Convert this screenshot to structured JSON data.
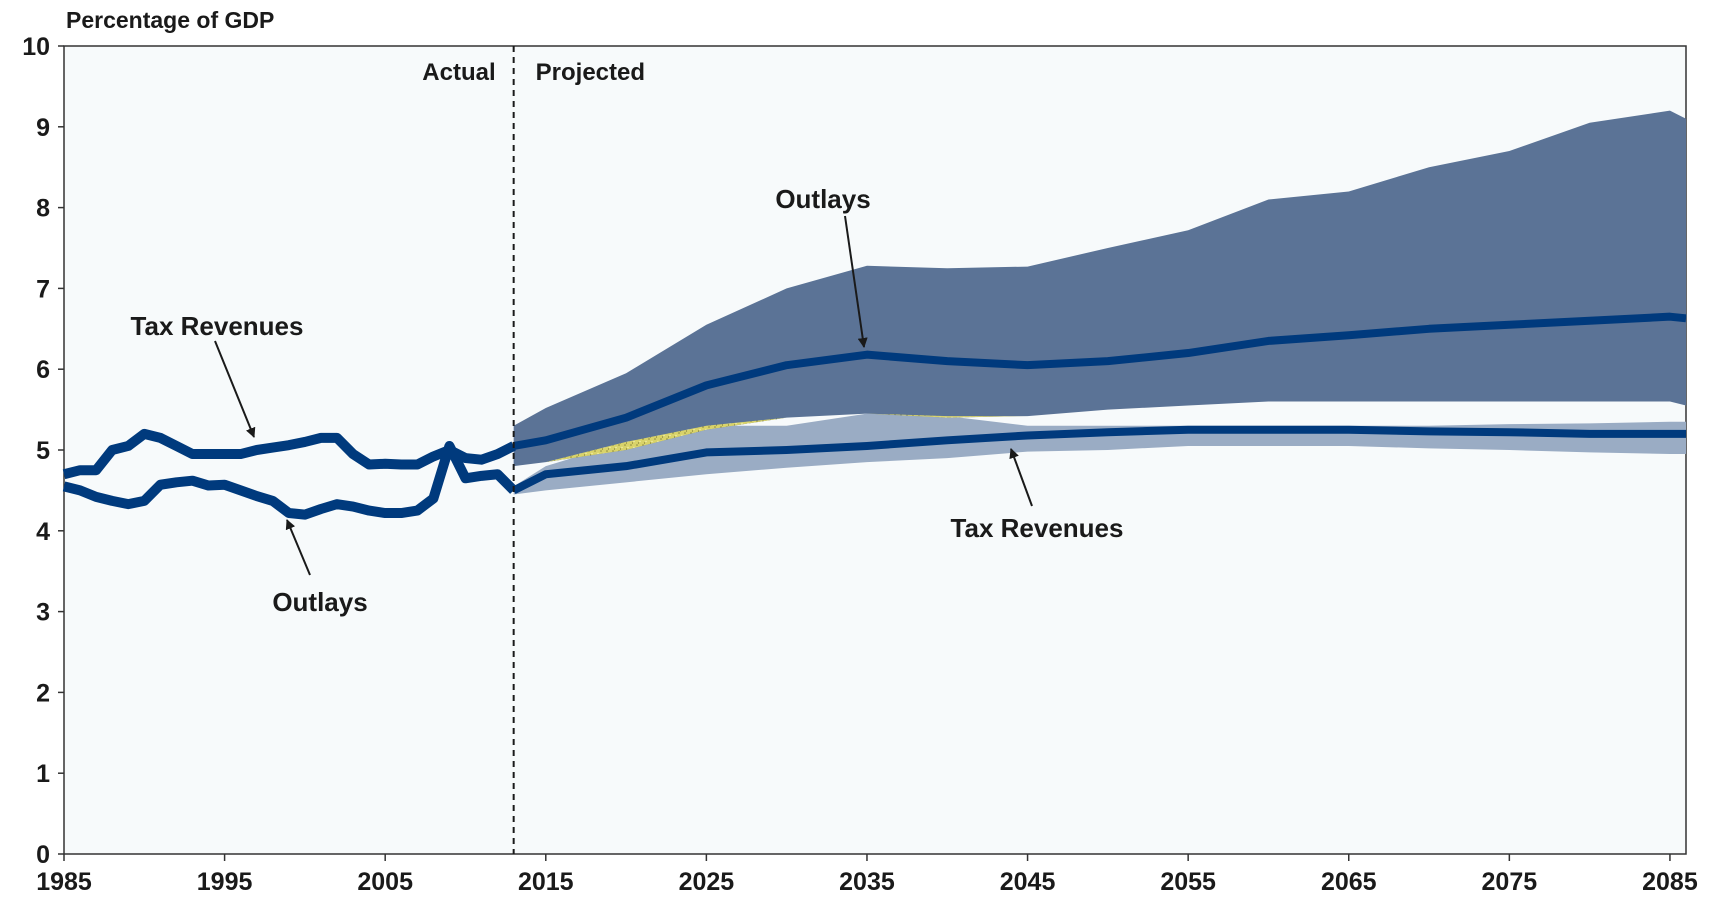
{
  "chart_data": {
    "type": "line",
    "y_label": "Percentage of GDP",
    "xlim": [
      1985,
      2086
    ],
    "ylim": [
      0,
      10
    ],
    "xticks": [
      1985,
      1995,
      2005,
      2015,
      2025,
      2035,
      2045,
      2055,
      2065,
      2075,
      2085
    ],
    "yticks": [
      0,
      1,
      2,
      3,
      4,
      5,
      6,
      7,
      8,
      9,
      10
    ],
    "divider_x": 2013,
    "divider_labels": [
      "Actual",
      "Projected"
    ],
    "annotations": [
      "Tax Revenues",
      "Outlays",
      "Outlays",
      "Tax Revenues"
    ],
    "bands": [
      {
        "color": "#9aacc4",
        "x": [
          2013,
          2015,
          2020,
          2025,
          2030,
          2035,
          2040,
          2045,
          2050,
          2055,
          2060,
          2065,
          2070,
          2075,
          2080,
          2085,
          2086
        ],
        "lower": [
          4.45,
          4.5,
          4.6,
          4.7,
          4.78,
          4.85,
          4.9,
          4.98,
          5.0,
          5.05,
          5.05,
          5.05,
          5.02,
          5.0,
          4.97,
          4.95,
          4.95
        ],
        "upper": [
          4.55,
          4.8,
          5.1,
          5.3,
          5.3,
          5.45,
          5.42,
          5.3,
          5.3,
          5.3,
          5.3,
          5.3,
          5.3,
          5.32,
          5.33,
          5.35,
          5.35
        ]
      },
      {
        "color": "#5b7396",
        "x": [
          2013,
          2015,
          2020,
          2025,
          2030,
          2035,
          2040,
          2045,
          2050,
          2055,
          2060,
          2065,
          2070,
          2075,
          2080,
          2085,
          2086
        ],
        "lower": [
          4.8,
          4.85,
          5.0,
          5.25,
          5.4,
          5.45,
          5.4,
          5.42,
          5.5,
          5.55,
          5.6,
          5.6,
          5.6,
          5.6,
          5.6,
          5.6,
          5.55
        ],
        "upper": [
          5.3,
          5.52,
          5.95,
          6.55,
          7.0,
          7.28,
          7.25,
          7.27,
          7.5,
          7.72,
          8.1,
          8.2,
          8.5,
          8.7,
          9.05,
          9.2,
          9.1
        ]
      }
    ],
    "overlap_color": "#d9d36a",
    "series": [
      {
        "color": "#003a7d",
        "x": [
          1985,
          1986,
          1987,
          1988,
          1989,
          1990,
          1991,
          1992,
          1993,
          1994,
          1995,
          1996,
          1997,
          1998,
          1999,
          2000,
          2001,
          2002,
          2003,
          2004,
          2005,
          2006,
          2007,
          2008,
          2009,
          2010,
          2011,
          2012,
          2013
        ],
        "values": [
          4.7,
          4.75,
          4.75,
          5.0,
          5.05,
          5.2,
          5.15,
          5.05,
          4.95,
          4.95,
          4.95,
          4.95,
          5.0,
          5.03,
          5.06,
          5.1,
          5.15,
          5.15,
          4.95,
          4.82,
          4.83,
          4.82,
          4.82,
          4.92,
          5.0,
          4.9,
          4.88,
          4.95,
          5.05
        ]
      },
      {
        "color": "#003a7d",
        "x": [
          1985,
          1986,
          1987,
          1988,
          1989,
          1990,
          1991,
          1992,
          1993,
          1994,
          1995,
          1996,
          1997,
          1998,
          1999,
          2000,
          2001,
          2002,
          2003,
          2004,
          2005,
          2006,
          2007,
          2008,
          2009,
          2010,
          2011,
          2012,
          2013
        ],
        "values": [
          4.55,
          4.5,
          4.42,
          4.37,
          4.33,
          4.37,
          4.57,
          4.6,
          4.62,
          4.56,
          4.57,
          4.5,
          4.43,
          4.37,
          4.22,
          4.2,
          4.27,
          4.33,
          4.3,
          4.25,
          4.22,
          4.22,
          4.25,
          4.4,
          5.05,
          4.65,
          4.68,
          4.7,
          4.5
        ]
      },
      {
        "color": "#003a7d",
        "x": [
          2013,
          2015,
          2020,
          2025,
          2030,
          2035,
          2040,
          2045,
          2050,
          2055,
          2060,
          2065,
          2070,
          2075,
          2080,
          2085,
          2086
        ],
        "values": [
          5.05,
          5.12,
          5.4,
          5.8,
          6.05,
          6.18,
          6.1,
          6.05,
          6.1,
          6.2,
          6.35,
          6.42,
          6.5,
          6.55,
          6.6,
          6.65,
          6.63
        ]
      },
      {
        "color": "#003a7d",
        "x": [
          2013,
          2015,
          2020,
          2025,
          2030,
          2035,
          2040,
          2045,
          2050,
          2055,
          2060,
          2065,
          2070,
          2075,
          2080,
          2085,
          2086
        ],
        "values": [
          4.5,
          4.7,
          4.8,
          4.97,
          5.0,
          5.05,
          5.12,
          5.18,
          5.22,
          5.25,
          5.25,
          5.25,
          5.23,
          5.22,
          5.2,
          5.2,
          5.2
        ]
      }
    ]
  }
}
